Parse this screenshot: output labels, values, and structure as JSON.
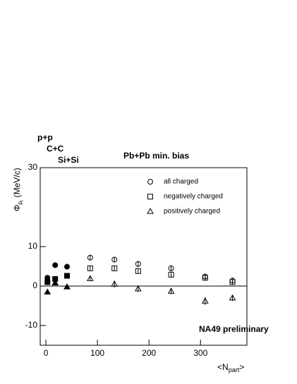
{
  "chart_data": {
    "type": "scatter",
    "title": "Pb+Pb min. bias",
    "annotations": [
      "p+p",
      "C+C",
      "Si+Si",
      "NA49 preliminary"
    ],
    "y_label": "Φ",
    "y_label_sub": "p",
    "y_label_subsub": "t",
    "y_label_unit": "(MeV/c)",
    "x_label": "<N",
    "x_label_sub": "part",
    "x_label_end": ">",
    "x": [
      3,
      18,
      41,
      86,
      133,
      179,
      243,
      309,
      362
    ],
    "filled": [
      true,
      true,
      true,
      false,
      false,
      false,
      false,
      false,
      false
    ],
    "series": [
      {
        "name": "all charged",
        "marker": "circle",
        "color": "#000000",
        "values": [
          2.1,
          5.3,
          4.9,
          7.2,
          6.7,
          5.6,
          4.5,
          2.4,
          1.4
        ],
        "errors": [
          0.6,
          0.6,
          0.7,
          0.6,
          0.7,
          0.7,
          0.7,
          0.7,
          0.6
        ]
      },
      {
        "name": "negatively charged",
        "marker": "square",
        "color": "#000000",
        "values": [
          1.0,
          1.8,
          2.6,
          4.5,
          4.5,
          3.8,
          2.9,
          2.1,
          1.0
        ],
        "errors": [
          0.5,
          0.6,
          0.6,
          0.6,
          0.7,
          0.6,
          0.7,
          0.7,
          0.6
        ]
      },
      {
        "name": "positively charged",
        "marker": "triangle",
        "color": "#000000",
        "values": [
          -1.5,
          0.8,
          -0.2,
          1.9,
          0.5,
          -0.7,
          -1.3,
          -3.8,
          -3.0
        ],
        "errors": [
          0.5,
          0.6,
          0.6,
          0.6,
          0.9,
          0.8,
          0.8,
          1.0,
          0.8
        ]
      }
    ],
    "xlim": [
      -11,
      390
    ],
    "ylim": [
      -15,
      30
    ],
    "xticks": [
      0,
      100,
      200,
      300
    ],
    "yticks": [
      -10,
      0,
      10,
      30
    ],
    "hline": 0
  }
}
